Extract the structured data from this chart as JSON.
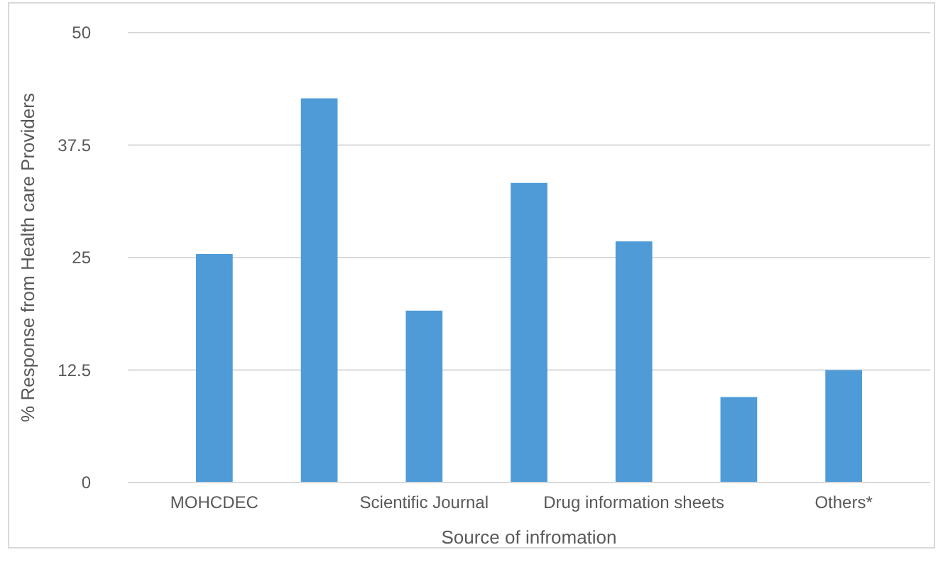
{
  "chart_data": {
    "type": "bar",
    "xlabel": "Source of infromation",
    "ylabel": "% Response from Health care Providers",
    "categories": [
      "MOHCDEC",
      null,
      "Scientific Journal",
      null,
      "Drug information sheets",
      null,
      "Others*"
    ],
    "values": [
      25.4,
      42.7,
      19.1,
      33.3,
      26.8,
      9.5,
      12.5
    ],
    "color": "#4e9bd8",
    "ylim": [
      0,
      50
    ],
    "yticks": [
      0,
      12.5,
      25,
      37.5,
      50
    ],
    "grid": "y"
  }
}
